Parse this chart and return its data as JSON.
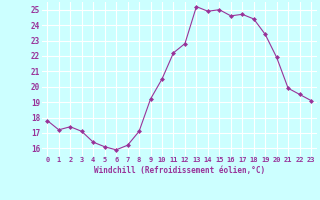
{
  "x": [
    0,
    1,
    2,
    3,
    4,
    5,
    6,
    7,
    8,
    9,
    10,
    11,
    12,
    13,
    14,
    15,
    16,
    17,
    18,
    19,
    20,
    21,
    22,
    23
  ],
  "y": [
    17.8,
    17.2,
    17.4,
    17.1,
    16.4,
    16.1,
    15.9,
    16.2,
    17.1,
    19.2,
    20.5,
    22.2,
    22.8,
    25.2,
    24.9,
    25.0,
    24.6,
    24.7,
    24.4,
    23.4,
    21.9,
    19.9,
    19.5,
    19.1
  ],
  "line_color": "#993399",
  "marker": "D",
  "marker_size": 2,
  "bg_color": "#ccffff",
  "grid_color": "#ffffff",
  "xlabel": "Windchill (Refroidissement éolien,°C)",
  "xlabel_color": "#993399",
  "tick_color": "#993399",
  "ylim": [
    15.5,
    25.5
  ],
  "xlim": [
    -0.5,
    23.5
  ],
  "yticks": [
    16,
    17,
    18,
    19,
    20,
    21,
    22,
    23,
    24,
    25
  ],
  "xticks": [
    0,
    1,
    2,
    3,
    4,
    5,
    6,
    7,
    8,
    9,
    10,
    11,
    12,
    13,
    14,
    15,
    16,
    17,
    18,
    19,
    20,
    21,
    22,
    23
  ]
}
